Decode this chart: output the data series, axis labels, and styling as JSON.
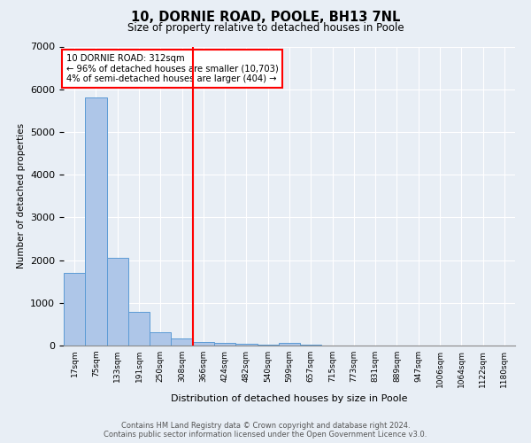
{
  "title_line1": "10, DORNIE ROAD, POOLE, BH13 7NL",
  "title_line2": "Size of property relative to detached houses in Poole",
  "xlabel": "Distribution of detached houses by size in Poole",
  "ylabel": "Number of detached properties",
  "footnote1": "Contains HM Land Registry data © Crown copyright and database right 2024.",
  "footnote2": "Contains public sector information licensed under the Open Government Licence v3.0.",
  "annotation_line1": "10 DORNIE ROAD: 312sqm",
  "annotation_line2": "← 96% of detached houses are smaller (10,703)",
  "annotation_line3": "4% of semi-detached houses are larger (404) →",
  "bar_labels": [
    "17sqm",
    "75sqm",
    "133sqm",
    "191sqm",
    "250sqm",
    "308sqm",
    "366sqm",
    "424sqm",
    "482sqm",
    "540sqm",
    "599sqm",
    "657sqm",
    "715sqm",
    "773sqm",
    "831sqm",
    "889sqm",
    "947sqm",
    "1006sqm",
    "1064sqm",
    "1122sqm",
    "1180sqm"
  ],
  "bar_values": [
    1700,
    5800,
    2050,
    780,
    320,
    170,
    90,
    55,
    35,
    25,
    65,
    18,
    0,
    0,
    0,
    0,
    0,
    0,
    0,
    0,
    0
  ],
  "bar_color": "#aec6e8",
  "bar_edge_color": "#5b9bd5",
  "vline_x": 5.5,
  "vline_color": "red",
  "ylim": [
    0,
    7000
  ],
  "bg_color": "#e8eef5",
  "grid_color": "#ffffff",
  "yticks": [
    0,
    1000,
    2000,
    3000,
    4000,
    5000,
    6000,
    7000
  ]
}
